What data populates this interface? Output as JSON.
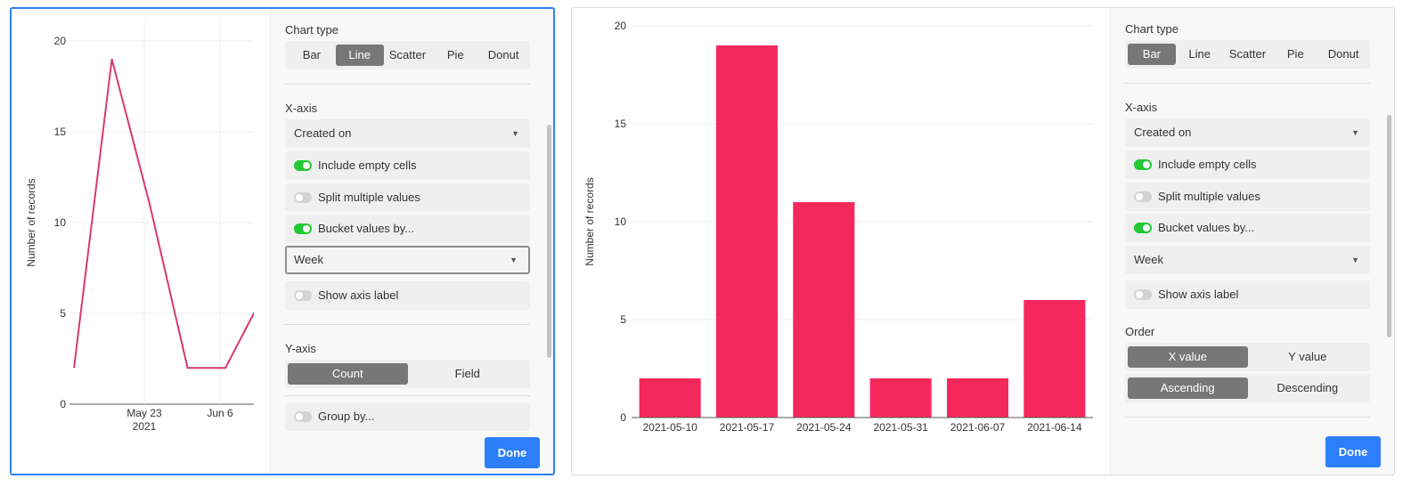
{
  "colors": {
    "accent": "#2d7ff9",
    "line": "#d63a6e",
    "bar": "#f5285c",
    "toggle_on": "#20c933"
  },
  "left_panel": {
    "chart_data": {
      "type": "line",
      "ylabel": "Number of records",
      "ylim": [
        0,
        20
      ],
      "yticks": [
        "0",
        "5",
        "10",
        "15",
        "20"
      ],
      "xticks": [
        "May 23",
        "Jun 6"
      ],
      "xtick_sub": "2021",
      "series": [
        {
          "x": [
            "2021-05-10",
            "2021-05-17",
            "2021-05-24",
            "2021-05-31",
            "2021-06-07",
            "2021-06-14"
          ],
          "values": [
            2,
            19,
            11,
            2,
            2,
            6
          ]
        }
      ]
    },
    "config": {
      "chart_type_label": "Chart type",
      "chart_types": [
        "Bar",
        "Line",
        "Scatter",
        "Pie",
        "Donut"
      ],
      "chart_type_selected": "Line",
      "x_axis_label": "X-axis",
      "x_field": "Created on",
      "include_empty": "Include empty cells",
      "split_multiple": "Split multiple values",
      "bucket_values": "Bucket values by...",
      "bucket_unit": "Week",
      "show_axis_label": "Show axis label",
      "y_axis_label": "Y-axis",
      "y_modes": [
        "Count",
        "Field"
      ],
      "y_mode_selected": "Count",
      "group_by": "Group by...",
      "done": "Done"
    }
  },
  "right_panel": {
    "chart_data": {
      "type": "bar",
      "ylabel": "Number of records",
      "ylim": [
        0,
        20
      ],
      "yticks": [
        "0",
        "5",
        "10",
        "15",
        "20"
      ],
      "categories": [
        "2021-05-10",
        "2021-05-17",
        "2021-05-24",
        "2021-05-31",
        "2021-06-07",
        "2021-06-14"
      ],
      "values": [
        2,
        19,
        11,
        2,
        2,
        6
      ]
    },
    "config": {
      "chart_type_label": "Chart type",
      "chart_types": [
        "Bar",
        "Line",
        "Scatter",
        "Pie",
        "Donut"
      ],
      "chart_type_selected": "Bar",
      "x_axis_label": "X-axis",
      "x_field": "Created on",
      "include_empty": "Include empty cells",
      "split_multiple": "Split multiple values",
      "bucket_values": "Bucket values by...",
      "bucket_unit": "Week",
      "show_axis_label": "Show axis label",
      "order_label": "Order",
      "order_by": [
        "X value",
        "Y value"
      ],
      "order_by_selected": "X value",
      "order_dir": [
        "Ascending",
        "Descending"
      ],
      "order_dir_selected": "Ascending",
      "done": "Done"
    }
  }
}
